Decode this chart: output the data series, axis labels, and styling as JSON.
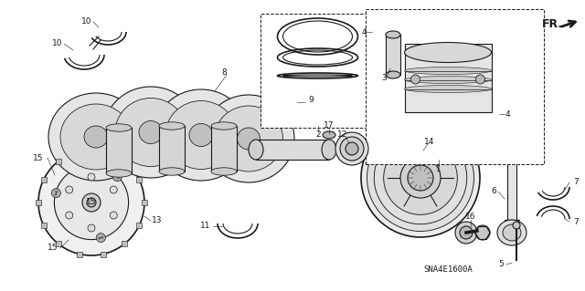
{
  "bg_color": "#ffffff",
  "fig_width": 6.4,
  "fig_height": 3.19,
  "dpi": 100,
  "diagram_code": "SNA4E1600A",
  "line_color": "#1a1a1a",
  "gray_fill": "#e8e8e8",
  "dark_gray": "#888888",
  "mid_gray": "#bbbbbb",
  "light_gray": "#f0f0f0",
  "label_fontsize": 6.5,
  "code_fontsize": 6.5
}
